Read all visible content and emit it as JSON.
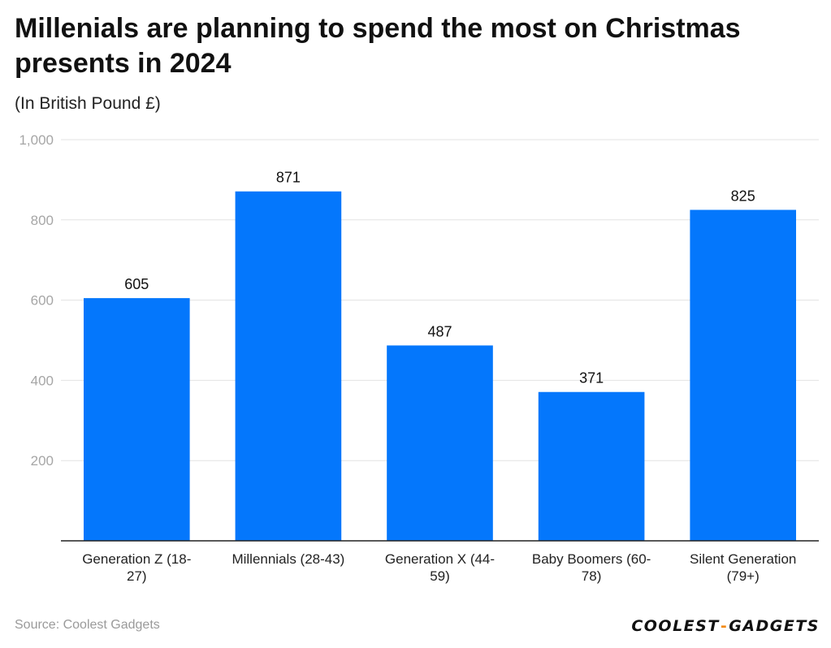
{
  "title": "Millenials are planning to spend the most on Christmas presents in 2024",
  "subtitle": "(In British Pound £)",
  "source": "Source: Coolest Gadgets",
  "logo": {
    "part1": "COOLEST",
    "separator": "-",
    "part2": "GADGETS",
    "accent_color": "#f28a16"
  },
  "chart_data": {
    "type": "bar",
    "categories": [
      [
        "Generation Z (18-",
        "27)"
      ],
      [
        "Millennials (28-43)"
      ],
      [
        "Generation X (44-",
        "59)"
      ],
      [
        "Baby Boomers (60-",
        "78)"
      ],
      [
        "Silent Generation",
        "(79+)"
      ]
    ],
    "values": [
      605,
      871,
      487,
      371,
      825
    ],
    "value_labels": [
      "605",
      "871",
      "487",
      "371",
      "825"
    ],
    "yticks": [
      {
        "value": 200,
        "label": "200"
      },
      {
        "value": 400,
        "label": "400"
      },
      {
        "value": 600,
        "label": "600"
      },
      {
        "value": 800,
        "label": "800"
      },
      {
        "value": 1000,
        "label": "1,000"
      }
    ],
    "ylim": [
      0,
      1000
    ],
    "xlabel": "",
    "ylabel": "",
    "grid": true,
    "bar_color": "#0477fc",
    "legend": "none"
  }
}
